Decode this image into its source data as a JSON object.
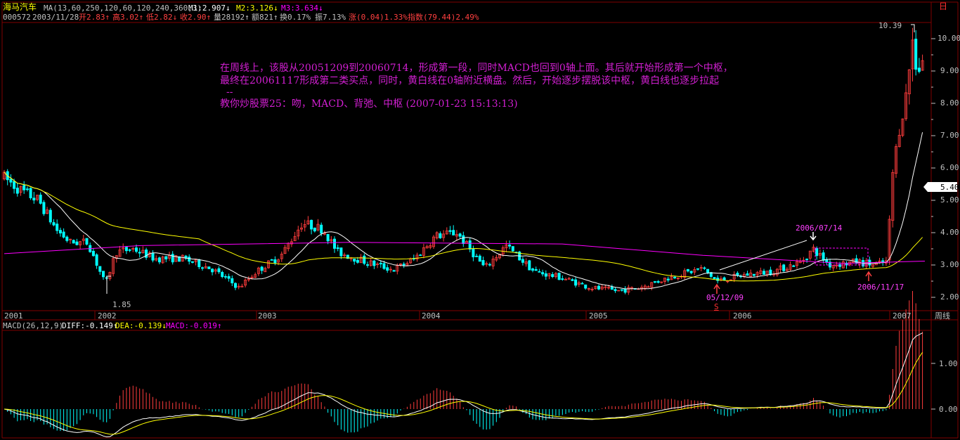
{
  "header": {
    "stock_name": "海马汽车",
    "ma_label": "MA(13,60,250,120,60,120,240,360,3)",
    "m1": "M1:2.907↓",
    "m2": "M2:3.126↓",
    "m3": "M3:3.634↓",
    "corner_icon": "日",
    "code": "000572",
    "date": "2003/11/28",
    "open": "开2.83↑",
    "high": "高3.02↑",
    "low": "低2.82↓",
    "close": "收2.90↑",
    "volume": "量28192↑",
    "amount": "额821↑",
    "turnover": "换0.17%",
    "amplitude": "振7.13%",
    "change": "涨(0.04)1.33%",
    "index": "指数(79.44)2.49%"
  },
  "annotation": {
    "line1": "在周线上，该股从20051209到20060714，形成第一段，同时MACD也回到0轴上面。其后就开始形成第一个中枢，",
    "line2": "最终在20061117形成第二类买点，同时，黄白线在0轴附近横盘。然后，开始逐步摆脱该中枢，黄白线也逐步拉起",
    "line3": "--",
    "line4": " 教你炒股票25：吻，MACD、背弛、中枢 (2007-01-23 15:13:13)"
  },
  "markers": {
    "max_price": "10.39",
    "min_price": "1.85",
    "current_price": "5.40",
    "date_a": "2006/07/14",
    "date_b": "05/12/09",
    "date_c": "2006/11/17",
    "signal": "S"
  },
  "price_axis": [
    "10.00",
    "9.00",
    "8.00",
    "7.00",
    "6.00",
    "5.00",
    "4.00",
    "3.00",
    "2.00"
  ],
  "time_axis": [
    "2001",
    "2002",
    "2003",
    "2004",
    "2005",
    "2006",
    "2007"
  ],
  "period_label": "周线",
  "macd": {
    "title": "MACD(26,12,9)",
    "diff": "DIFF:-0.149↑",
    "dea": "DEA:-0.139↓",
    "macd": "MACD:-0.019↑",
    "axis": [
      "1.00",
      "0.00"
    ]
  },
  "colors": {
    "up": "#ff3c3c",
    "down": "#00ffff",
    "ma1": "#ffffff",
    "ma2": "#ffff00",
    "ma3": "#ff00ff",
    "grid": "#800000",
    "axis": "#c0c0c0"
  }
}
